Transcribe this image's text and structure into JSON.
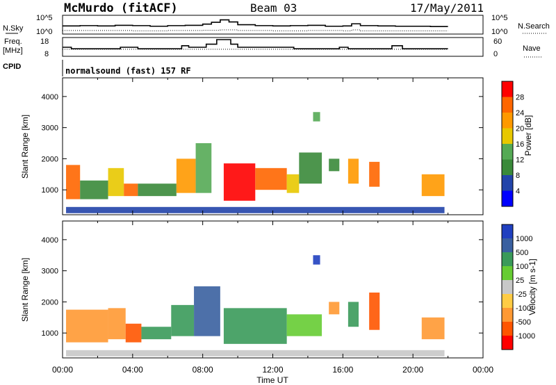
{
  "header": {
    "station": "McMurdo (fitACF)",
    "beam": "Beam 03",
    "date": "17/May/2011"
  },
  "colors": {
    "power": [
      "#0000ff",
      "#2244aa",
      "#3a8a3a",
      "#55aa55",
      "#e8c800",
      "#ff9900",
      "#ff6600",
      "#ff0000"
    ],
    "velocity": [
      "#2040c0",
      "#3a60a0",
      "#3a9a5a",
      "#66cc33",
      "#c8c8c8",
      "#ffcc44",
      "#ff9933",
      "#ff5500",
      "#ff0000"
    ]
  },
  "chart_data": [
    {
      "type": "line",
      "panel": "noise",
      "left_label": "N.Sky",
      "right_label": "N.Search",
      "left_ticks": [
        "10^5",
        "10^0"
      ],
      "right_ticks": [
        "10^5",
        "10^0"
      ],
      "series": [
        {
          "name": "N.Sky",
          "style": "solid",
          "x": [
            0,
            1,
            2,
            3,
            4,
            5,
            6,
            7,
            8,
            8.5,
            9,
            9.5,
            10,
            11,
            12,
            13,
            14,
            15,
            16,
            16.5,
            17,
            18,
            19,
            20,
            21,
            22
          ],
          "y": [
            2.2,
            2.3,
            2.2,
            2.4,
            2.3,
            2.1,
            2.3,
            2.4,
            2.8,
            3.4,
            4.2,
            3.5,
            2.6,
            2.3,
            2.2,
            2.3,
            2.4,
            2.1,
            2.2,
            2.9,
            2.3,
            2.2,
            2.1,
            2.1,
            2.0,
            2.0
          ]
        },
        {
          "name": "N.Search",
          "style": "dotted",
          "x": [
            0,
            2,
            4,
            6,
            8,
            9,
            10,
            12,
            14,
            16,
            16.5,
            17,
            18,
            19,
            20,
            22
          ],
          "y": [
            0.7,
            0.7,
            0.6,
            0.7,
            0.8,
            0.9,
            0.7,
            0.6,
            0.7,
            0.6,
            0.9,
            0.6,
            0.6,
            0.6,
            0.6,
            0.6
          ]
        }
      ]
    },
    {
      "type": "line",
      "panel": "frequency",
      "left_label_top": "Freq.",
      "left_label_bottom": "[MHz]",
      "left_ticks": [
        "18",
        "8"
      ],
      "right_label": "Nave",
      "right_ticks": [
        "60",
        "0"
      ],
      "cpid_label": "CPID",
      "program_label": "normalsound (fast) 157 RF",
      "series": [
        {
          "name": "Freq. [MHz]",
          "style": "solid",
          "ylim": [
            8,
            18
          ],
          "x": [
            0,
            0.5,
            2.8,
            3.3,
            4.3,
            5.2,
            6.8,
            7.2,
            7.8,
            8.2,
            8.8,
            9.6,
            10.0,
            13.2,
            15.8,
            16.3,
            18.8,
            19.4,
            20.2,
            22
          ],
          "y": [
            13,
            12,
            12,
            13,
            12,
            12,
            14,
            13,
            13,
            15,
            18,
            15,
            13,
            12,
            13,
            12,
            14,
            12,
            12,
            12
          ]
        },
        {
          "name": "Nave",
          "style": "dotted",
          "ylim": [
            0,
            60
          ],
          "x": [
            0,
            22
          ],
          "y": [
            22,
            22
          ]
        }
      ]
    },
    {
      "type": "heatmap",
      "panel": "power",
      "xlabel": "",
      "ylabel": "Slant Range [km]",
      "xlim": [
        0,
        24
      ],
      "ylim": [
        200,
        4600
      ],
      "y_ticks": [
        1000,
        2000,
        3000,
        4000
      ],
      "colorbar_label": "Power [dB]",
      "colorbar_ticks": [
        "4",
        "8",
        "12",
        "16",
        "20",
        "24",
        "28"
      ],
      "patches": [
        {
          "t0": 0.2,
          "t1": 1.0,
          "r0": 700,
          "r1": 1800,
          "level": 6
        },
        {
          "t0": 1.0,
          "t1": 2.6,
          "r0": 700,
          "r1": 1300,
          "level": 2
        },
        {
          "t0": 2.6,
          "t1": 3.5,
          "r0": 800,
          "r1": 1700,
          "level": 4
        },
        {
          "t0": 3.5,
          "t1": 4.3,
          "r0": 800,
          "r1": 1200,
          "level": 6
        },
        {
          "t0": 4.3,
          "t1": 6.5,
          "r0": 800,
          "r1": 1200,
          "level": 2
        },
        {
          "t0": 6.5,
          "t1": 7.6,
          "r0": 900,
          "r1": 2000,
          "level": 5
        },
        {
          "t0": 7.6,
          "t1": 8.5,
          "r0": 900,
          "r1": 2500,
          "level": 3
        },
        {
          "t0": 9.2,
          "t1": 11.0,
          "r0": 650,
          "r1": 1850,
          "level": 7
        },
        {
          "t0": 11.0,
          "t1": 12.8,
          "r0": 1000,
          "r1": 1700,
          "level": 6
        },
        {
          "t0": 12.8,
          "t1": 13.5,
          "r0": 900,
          "r1": 1500,
          "level": 4
        },
        {
          "t0": 13.5,
          "t1": 14.8,
          "r0": 1200,
          "r1": 2200,
          "level": 2
        },
        {
          "t0": 14.3,
          "t1": 14.7,
          "r0": 3200,
          "r1": 3500,
          "level": 3
        },
        {
          "t0": 15.2,
          "t1": 15.8,
          "r0": 1600,
          "r1": 2000,
          "level": 2
        },
        {
          "t0": 16.3,
          "t1": 16.9,
          "r0": 1200,
          "r1": 2000,
          "level": 5
        },
        {
          "t0": 17.5,
          "t1": 18.1,
          "r0": 1100,
          "r1": 1900,
          "level": 6
        },
        {
          "t0": 20.5,
          "t1": 21.8,
          "r0": 800,
          "r1": 1500,
          "level": 5
        },
        {
          "t0": 0.2,
          "t1": 21.8,
          "r0": 250,
          "r1": 450,
          "level": 1
        }
      ]
    },
    {
      "type": "heatmap",
      "panel": "velocity",
      "xlabel": "Time UT",
      "ylabel": "Slant Range [km]",
      "xlim": [
        0,
        24
      ],
      "ylim": [
        200,
        4600
      ],
      "x_ticks": [
        "00:00",
        "04:00",
        "08:00",
        "12:00",
        "16:00",
        "20:00",
        "00:00"
      ],
      "y_ticks": [
        1000,
        2000,
        3000,
        4000
      ],
      "colorbar_label": "Velocity [m s-1]",
      "colorbar_ticks": [
        "1000",
        "500",
        "100",
        "25",
        "-25",
        "-100",
        "-500",
        "-1000"
      ],
      "patches": [
        {
          "t0": 0.2,
          "t1": 2.6,
          "r0": 700,
          "r1": 1750,
          "level": 6
        },
        {
          "t0": 2.6,
          "t1": 3.6,
          "r0": 800,
          "r1": 1800,
          "level": 6
        },
        {
          "t0": 3.6,
          "t1": 4.5,
          "r0": 700,
          "r1": 1300,
          "level": 7
        },
        {
          "t0": 4.5,
          "t1": 6.2,
          "r0": 800,
          "r1": 1200,
          "level": 2
        },
        {
          "t0": 6.2,
          "t1": 7.5,
          "r0": 900,
          "r1": 1900,
          "level": 2
        },
        {
          "t0": 7.5,
          "t1": 9.0,
          "r0": 900,
          "r1": 2500,
          "level": 1
        },
        {
          "t0": 9.2,
          "t1": 12.8,
          "r0": 650,
          "r1": 1800,
          "level": 2
        },
        {
          "t0": 12.8,
          "t1": 14.8,
          "r0": 900,
          "r1": 1600,
          "level": 3
        },
        {
          "t0": 14.3,
          "t1": 14.7,
          "r0": 3200,
          "r1": 3500,
          "level": 0
        },
        {
          "t0": 15.2,
          "t1": 15.8,
          "r0": 1600,
          "r1": 2000,
          "level": 6
        },
        {
          "t0": 16.3,
          "t1": 16.9,
          "r0": 1200,
          "r1": 2000,
          "level": 2
        },
        {
          "t0": 17.5,
          "t1": 18.1,
          "r0": 1100,
          "r1": 2300,
          "level": 7
        },
        {
          "t0": 20.5,
          "t1": 21.8,
          "r0": 800,
          "r1": 1500,
          "level": 6
        },
        {
          "t0": 0.2,
          "t1": 21.8,
          "r0": 250,
          "r1": 450,
          "level": 4
        }
      ]
    }
  ]
}
